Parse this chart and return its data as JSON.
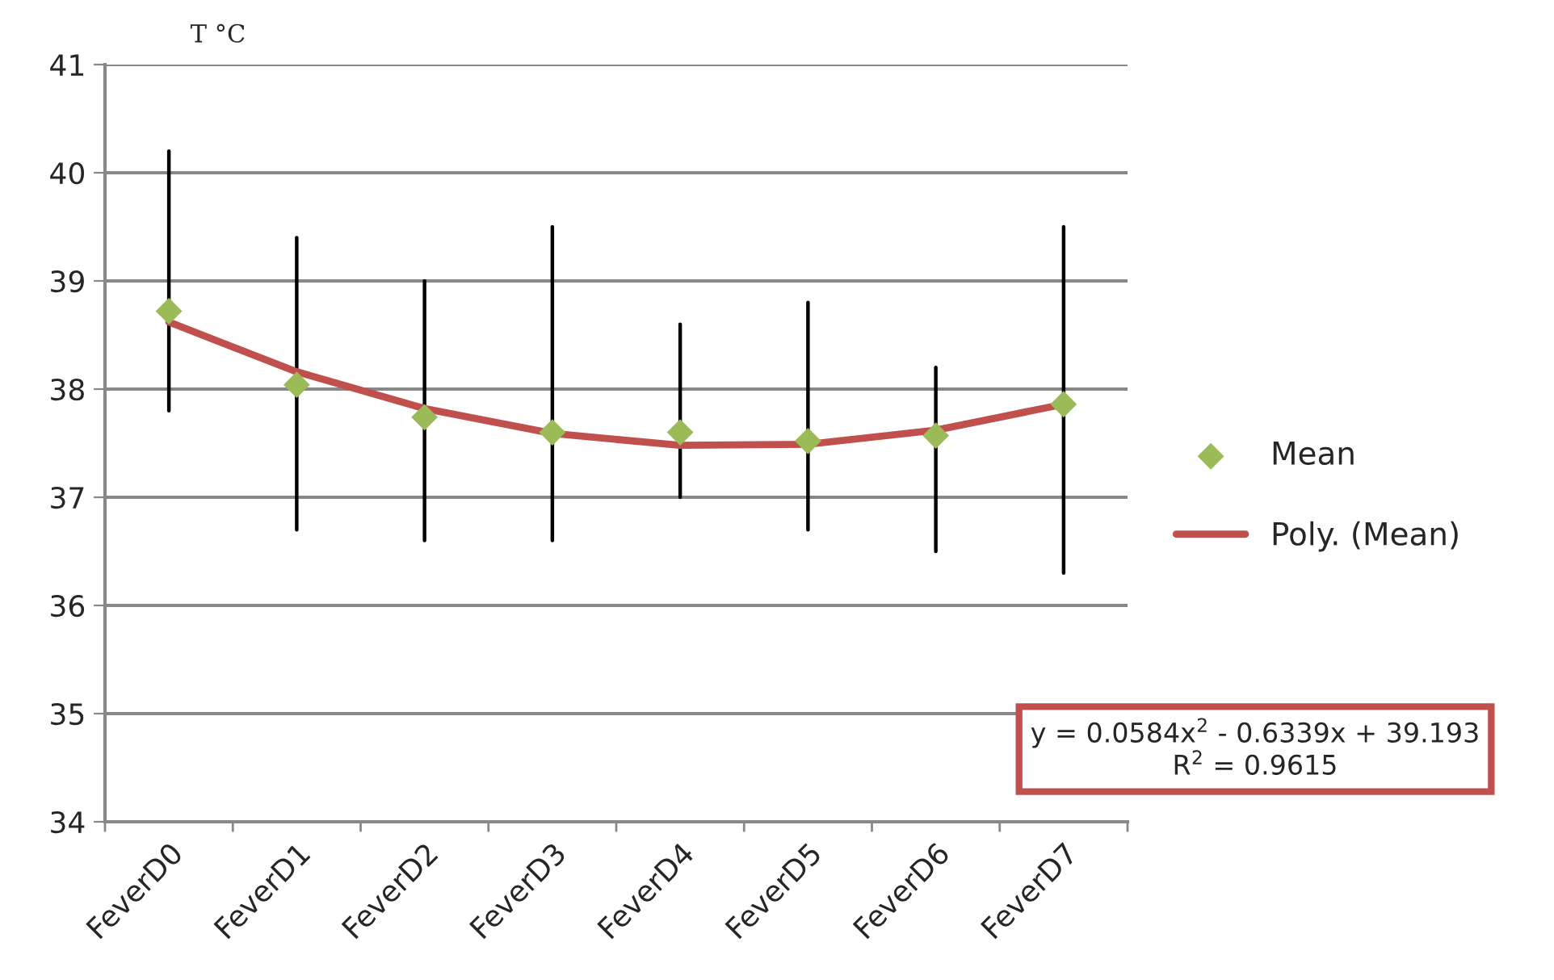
{
  "chart_data": {
    "type": "scatter",
    "ylabel": "T °C",
    "categories": [
      "FeverD0",
      "FeverD1",
      "FeverD2",
      "FeverD3",
      "FeverD4",
      "FeverD5",
      "FeverD6",
      "FeverD7"
    ],
    "series": [
      {
        "name": "Mean",
        "color": "#9bbb59",
        "marker": "diamond",
        "values": [
          38.72,
          38.04,
          37.74,
          37.6,
          37.6,
          37.52,
          37.57,
          37.86
        ],
        "errors": [
          [
            37.8,
            40.2
          ],
          [
            36.7,
            39.4
          ],
          [
            36.6,
            39.0
          ],
          [
            36.6,
            39.5
          ],
          [
            37.0,
            38.6
          ],
          [
            36.7,
            38.8
          ],
          [
            36.5,
            38.2
          ],
          [
            36.3,
            39.5
          ]
        ]
      },
      {
        "name": "Poly. (Mean)",
        "type": "line",
        "color": "#c0504d",
        "line_style": "solid",
        "values": [
          38.62,
          38.16,
          37.82,
          37.59,
          37.48,
          37.49,
          37.62,
          37.86
        ]
      }
    ],
    "annotations": [
      "y = 0.0584x$^{2}$ - 0.6339x + 39.193\nR$^{2}$ = 0.9615"
    ],
    "ylim": [
      34,
      41
    ],
    "yticks": [
      34,
      35,
      36,
      37,
      38,
      39,
      40,
      41
    ],
    "grid": "y",
    "legend": "right"
  }
}
